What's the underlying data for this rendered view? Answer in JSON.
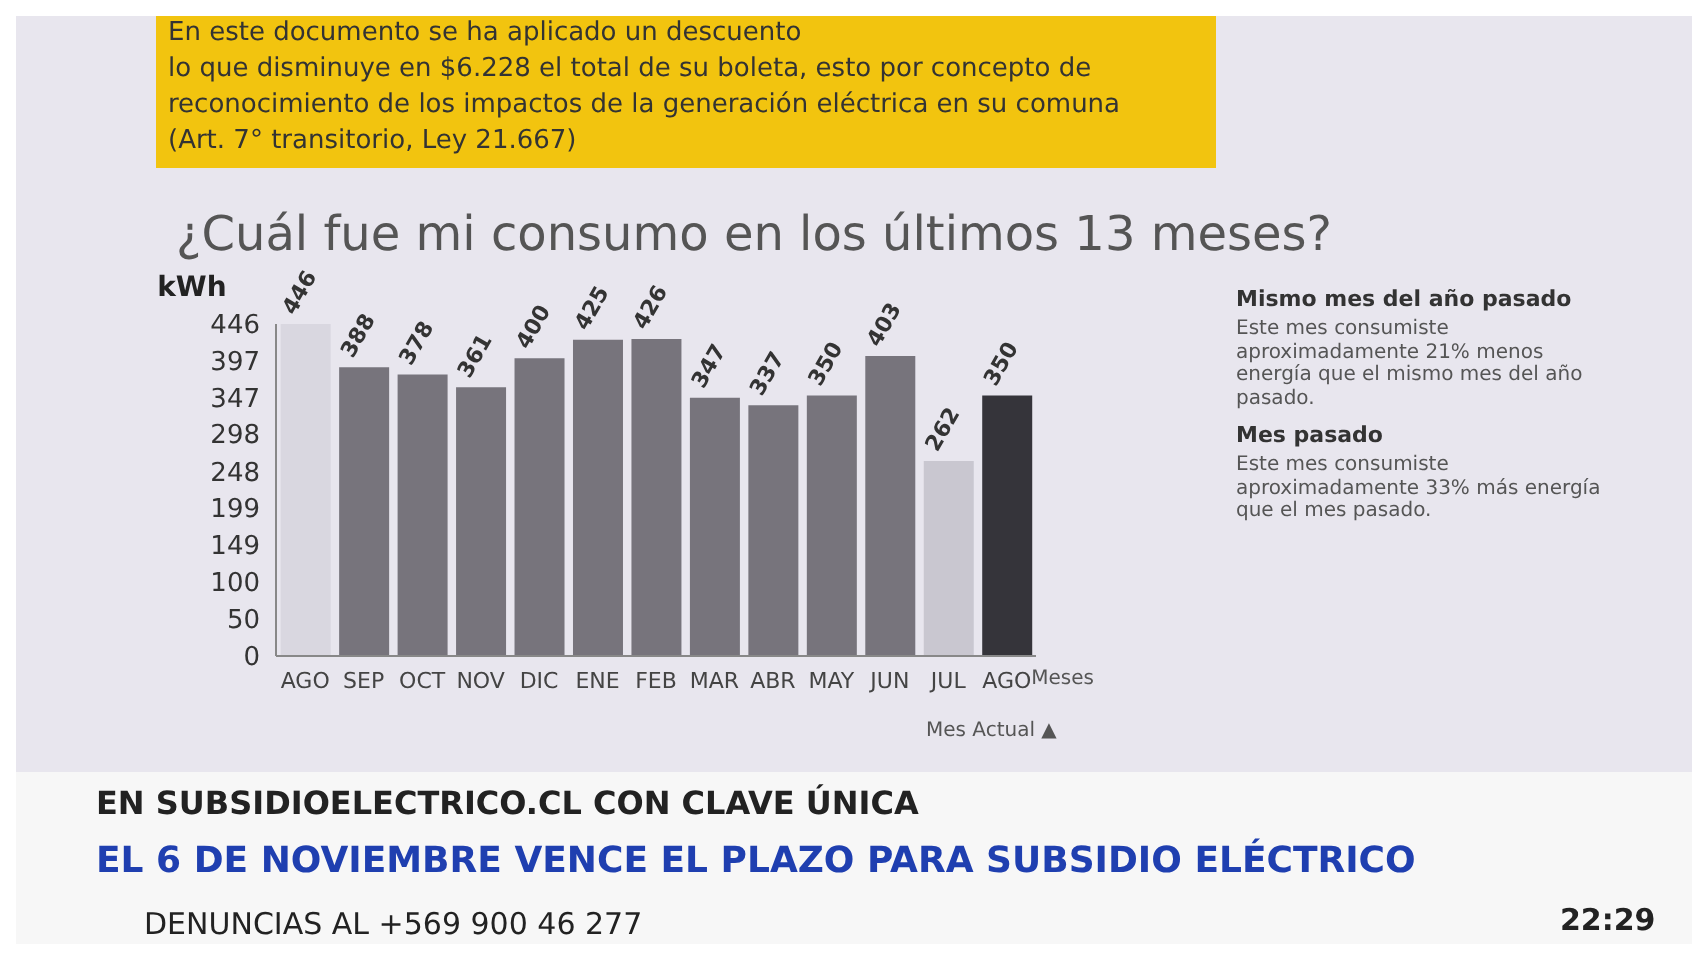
{
  "chart_data": {
    "type": "bar",
    "title": "¿Cuál fue mi consumo en los últimos 13 meses?",
    "xlabel": "Meses",
    "ylabel": "kWh",
    "categories": [
      "AGO",
      "SEP",
      "OCT",
      "NOV",
      "DIC",
      "ENE",
      "FEB",
      "MAR",
      "ABR",
      "MAY",
      "JUN",
      "JUL",
      "AGO"
    ],
    "values": [
      446,
      388,
      378,
      361,
      400,
      425,
      426,
      347,
      337,
      350,
      403,
      262,
      350
    ],
    "colors": [
      "#d9d7e0",
      "#77747c",
      "#77747c",
      "#77747c",
      "#77747c",
      "#77747c",
      "#77747c",
      "#77747c",
      "#77747c",
      "#77747c",
      "#77747c",
      "#c9c7d0",
      "#35343a"
    ],
    "ylim": [
      0,
      446
    ],
    "yticks": [
      0,
      50,
      100,
      149,
      199,
      248,
      298,
      347,
      397,
      446
    ],
    "grid": false,
    "data_labels": true,
    "annotations": [
      "En este documento se ha aplicado un descuento",
      "lo que disminuye en $6.228 el total de su boleta, esto por concepto de",
      "reconocimiento de los impactos de la generación eléctrica en su comuna",
      "(Art. 7° transitorio, Ley 21.667)",
      "Mismo mes del año pasado",
      "Este mes consumiste aproximadamente 21% menos energía que el mismo mes del año pasado.",
      "Mes pasado",
      "Este mes consumiste aproximadamente 33% más energía que el mes pasado.",
      "Mes Actual ▲",
      "EN SUBSIDIOELECTRICO.CL CON CLAVE ÚNICA",
      "EL 6 DE NOVIEMBRE VENCE EL PLAZO PARA SUBSIDIO ELÉCTRICO",
      "DENUNCIAS AL +569 900 46 277",
      "22:29"
    ]
  }
}
